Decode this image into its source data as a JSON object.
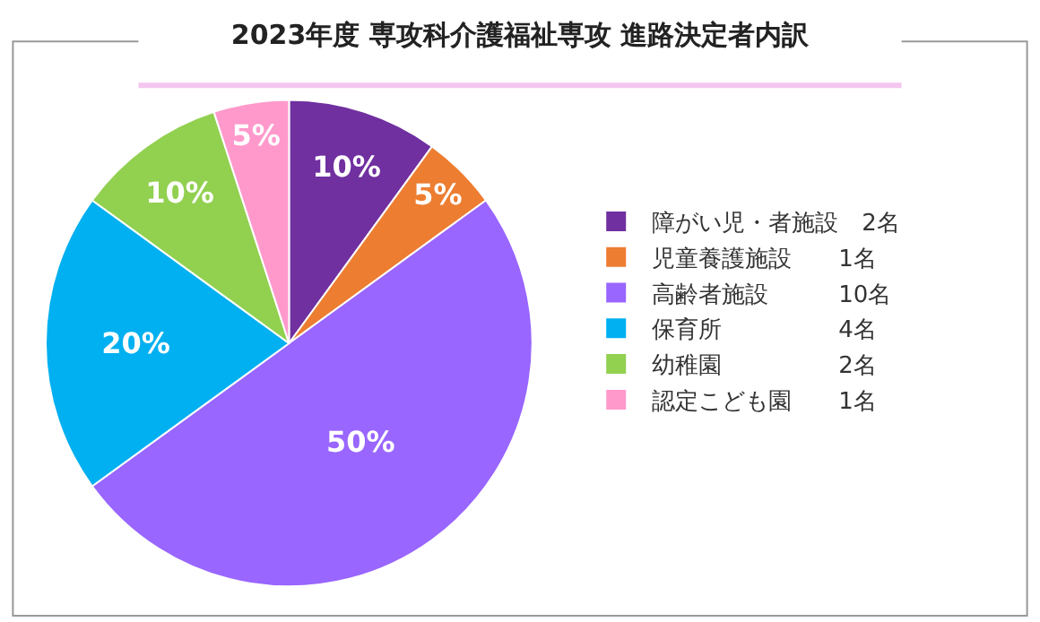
{
  "chart_data": {
    "type": "pie",
    "title": "2023年度 専攻科介護福祉専攻 進路決定者内訳",
    "categories": [
      "障がい児・者施設　2名",
      "児童養護施設　　1名",
      "高齢者施設　　　10名",
      "保育所　　　　　4名",
      "幼稚園　　　　　2名",
      "認定こども園　　1名"
    ],
    "values": [
      10,
      5,
      50,
      20,
      10,
      5
    ],
    "value_labels": [
      "10%",
      "5%",
      "50%",
      "20%",
      "10%",
      "5%"
    ],
    "colors": [
      "#7030a0",
      "#ed7d31",
      "#9966ff",
      "#00b0f0",
      "#92d050",
      "#ff99cc"
    ],
    "legend": "right"
  }
}
